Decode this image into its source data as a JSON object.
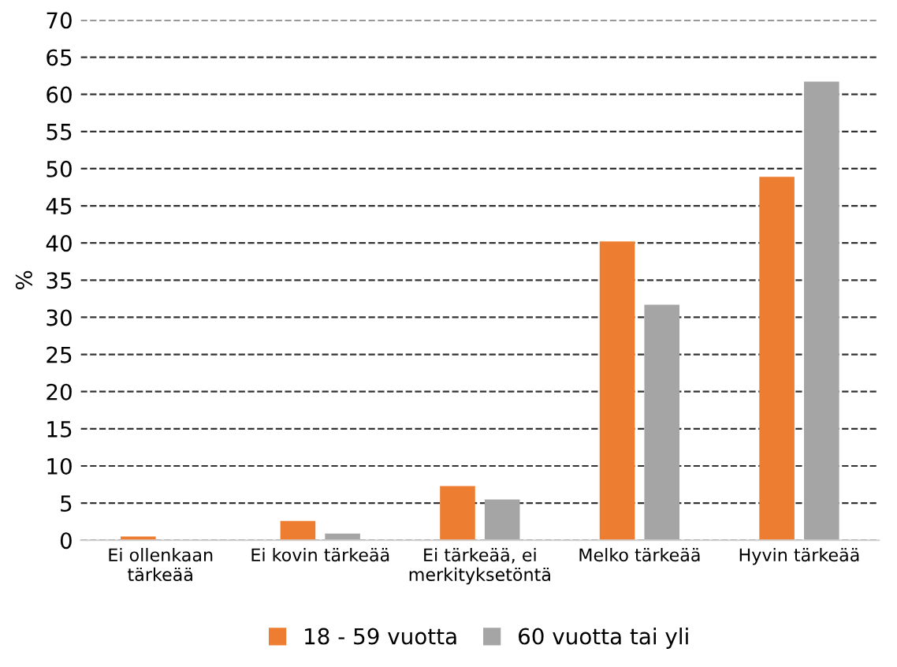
{
  "chart_data": {
    "type": "bar",
    "ylabel": "%",
    "categories": [
      "Ei ollenkaan\ntärkeää",
      "Ei kovin tärkeää",
      "Ei tärkeää, ei\nmerkityksetöntä",
      "Melko tärkeää",
      "Hyvin tärkeää"
    ],
    "series": [
      {
        "name": "18 - 59 vuotta",
        "color": "#ed7d31",
        "values": [
          0.5,
          2.6,
          7.3,
          40.2,
          48.9
        ]
      },
      {
        "name": "60 vuotta tai yli",
        "color": "#a5a5a5",
        "values": [
          0,
          0.9,
          5.5,
          31.7,
          61.7
        ]
      }
    ],
    "ylim": [
      0,
      70
    ],
    "yticks": [
      0,
      5,
      10,
      15,
      20,
      25,
      30,
      35,
      40,
      45,
      50,
      55,
      60,
      65,
      70
    ],
    "grid": "y",
    "line_style": "dashed",
    "legend": "bottom"
  }
}
